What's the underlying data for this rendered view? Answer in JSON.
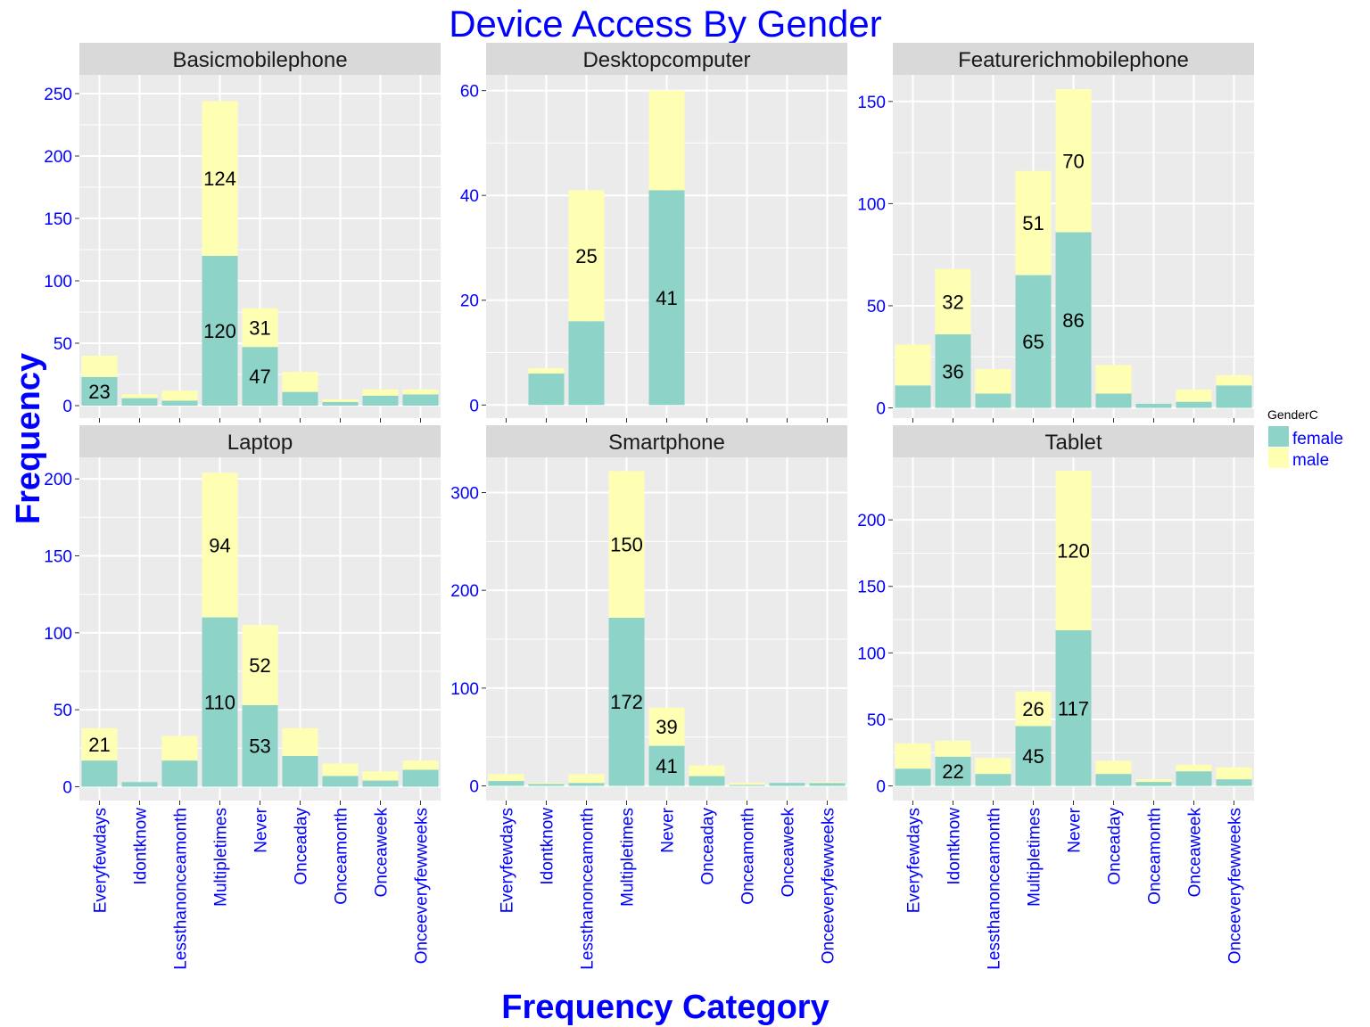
{
  "chart_data": {
    "type": "bar",
    "stacked": true,
    "faceted": true,
    "title": "Device Access By Gender",
    "xlabel": "Frequency Category",
    "ylabel": "Frequency",
    "legend": {
      "title": "GenderC",
      "position": "right",
      "entries": [
        {
          "name": "female",
          "color": "#8DD3C7"
        },
        {
          "name": "male",
          "color": "#FFFFB3"
        }
      ]
    },
    "colors": {
      "title_text": "#0000FF",
      "axis_text": "#0000FF",
      "strip_bg": "#D9D9D9",
      "panel_bg": "#EBEBEB",
      "grid": "#FFFFFF",
      "label_text": "#000000"
    },
    "categories": [
      "Everyfewdays",
      "Idontknow",
      "Lessthanonceamonth",
      "Multipletimes",
      "Never",
      "Onceaday",
      "Onceamonth",
      "Onceaweek",
      "Onceeveryfewweeks"
    ],
    "panels": [
      {
        "name": "Basicmobilephone",
        "ylim": [
          -10,
          265
        ],
        "yticks": [
          0,
          50,
          100,
          150,
          200,
          250
        ],
        "ymax_grid": 262,
        "female": [
          23,
          6,
          4,
          120,
          47,
          11,
          3,
          8,
          9
        ],
        "male": [
          17,
          3,
          8,
          124,
          31,
          16,
          2,
          5,
          4
        ],
        "labels": [
          {
            "cat": 0,
            "series": "female",
            "text": "23"
          },
          {
            "cat": 3,
            "series": "female",
            "text": "120"
          },
          {
            "cat": 3,
            "series": "male",
            "text": "124"
          },
          {
            "cat": 4,
            "series": "female",
            "text": "47"
          },
          {
            "cat": 4,
            "series": "male",
            "text": "31"
          }
        ]
      },
      {
        "name": "Desktopcomputer",
        "ylim": [
          -2.5,
          63
        ],
        "yticks": [
          0,
          20,
          40,
          60
        ],
        "ymax_grid": 63,
        "female": [
          null,
          6,
          16,
          null,
          41,
          null,
          null,
          null,
          null
        ],
        "male": [
          null,
          1,
          25,
          null,
          19,
          null,
          null,
          null,
          null
        ],
        "labels": [
          {
            "cat": 2,
            "series": "male",
            "text": "25"
          },
          {
            "cat": 4,
            "series": "female",
            "text": "41"
          }
        ]
      },
      {
        "name": "Featurerichmobilephone",
        "ylim": [
          -5,
          163
        ],
        "yticks": [
          0,
          50,
          100,
          150
        ],
        "ymax_grid": 163,
        "female": [
          11,
          36,
          7,
          65,
          86,
          7,
          2,
          3,
          11
        ],
        "male": [
          20,
          32,
          12,
          51,
          70,
          14,
          0,
          6,
          5
        ],
        "labels": [
          {
            "cat": 1,
            "series": "female",
            "text": "36"
          },
          {
            "cat": 1,
            "series": "male",
            "text": "32"
          },
          {
            "cat": 3,
            "series": "female",
            "text": "65"
          },
          {
            "cat": 3,
            "series": "male",
            "text": "51"
          },
          {
            "cat": 4,
            "series": "female",
            "text": "86"
          },
          {
            "cat": 4,
            "series": "male",
            "text": "70"
          }
        ]
      },
      {
        "name": "Laptop",
        "ylim": [
          -9,
          214
        ],
        "yticks": [
          0,
          50,
          100,
          150,
          200
        ],
        "ymax_grid": 214,
        "female": [
          17,
          3,
          17,
          110,
          53,
          20,
          7,
          4,
          11
        ],
        "male": [
          21,
          0,
          16,
          94,
          52,
          18,
          8,
          6,
          6
        ],
        "labels": [
          {
            "cat": 0,
            "series": "male",
            "text": "21"
          },
          {
            "cat": 3,
            "series": "female",
            "text": "110"
          },
          {
            "cat": 3,
            "series": "male",
            "text": "94"
          },
          {
            "cat": 4,
            "series": "female",
            "text": "53"
          },
          {
            "cat": 4,
            "series": "male",
            "text": "52"
          }
        ]
      },
      {
        "name": "Smartphone",
        "ylim": [
          -15,
          336
        ],
        "yticks": [
          0,
          100,
          200,
          300
        ],
        "ymax_grid": 336,
        "female": [
          5,
          2,
          3,
          172,
          41,
          10,
          1,
          3,
          3
        ],
        "male": [
          7,
          1,
          9,
          150,
          39,
          11,
          2,
          0,
          1
        ],
        "labels": [
          {
            "cat": 3,
            "series": "female",
            "text": "172"
          },
          {
            "cat": 3,
            "series": "male",
            "text": "150"
          },
          {
            "cat": 4,
            "series": "female",
            "text": "41"
          },
          {
            "cat": 4,
            "series": "male",
            "text": "39"
          }
        ]
      },
      {
        "name": "Tablet",
        "ylim": [
          -11,
          247
        ],
        "yticks": [
          0,
          50,
          100,
          150,
          200
        ],
        "ymax_grid": 247,
        "female": [
          13,
          22,
          9,
          45,
          117,
          9,
          3,
          11,
          5
        ],
        "male": [
          19,
          12,
          12,
          26,
          120,
          10,
          2,
          5,
          9
        ],
        "labels": [
          {
            "cat": 1,
            "series": "female",
            "text": "22"
          },
          {
            "cat": 3,
            "series": "female",
            "text": "45"
          },
          {
            "cat": 3,
            "series": "male",
            "text": "26"
          },
          {
            "cat": 4,
            "series": "female",
            "text": "117"
          },
          {
            "cat": 4,
            "series": "male",
            "text": "120"
          }
        ]
      }
    ]
  }
}
